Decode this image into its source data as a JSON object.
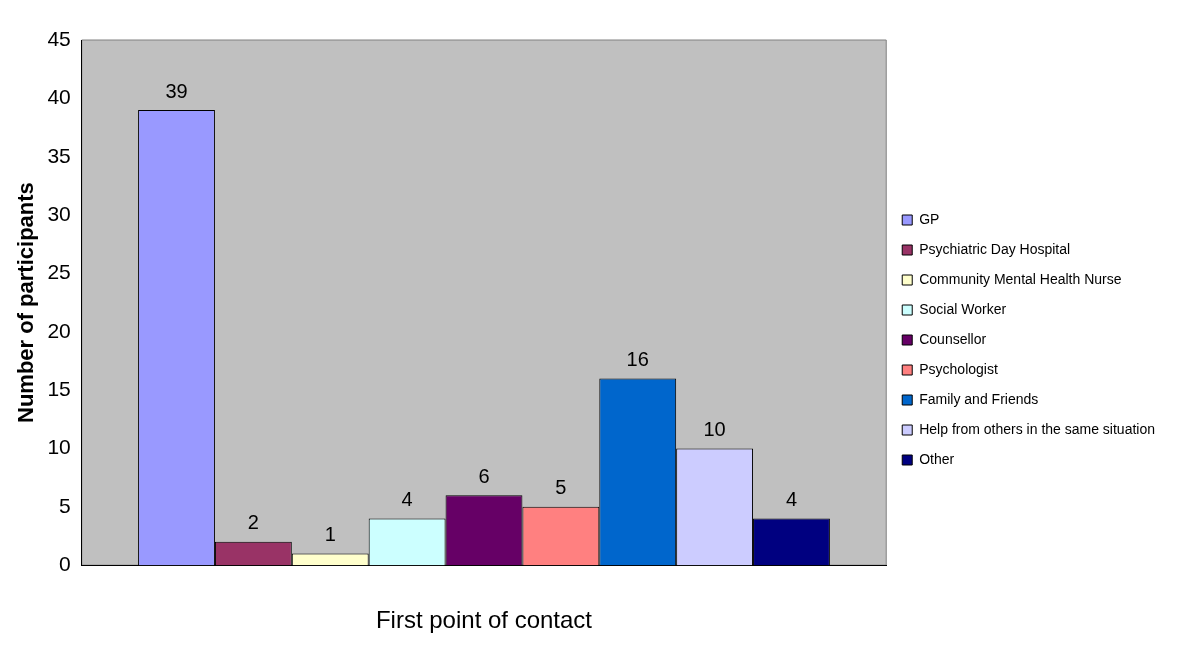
{
  "chart_data": {
    "type": "bar",
    "xlabel": "First point of contact",
    "ylabel": "Number of participants",
    "categories": [
      null
    ],
    "series": [
      {
        "name": "GP",
        "color": "#9999ff",
        "values": [
          39
        ]
      },
      {
        "name": "Psychiatric Day Hospital",
        "color": "#993366",
        "values": [
          2
        ]
      },
      {
        "name": "Community Mental Health Nurse",
        "color": "#ffffcc",
        "values": [
          1
        ]
      },
      {
        "name": "Social Worker",
        "color": "#ccffff",
        "values": [
          4
        ]
      },
      {
        "name": "Counsellor",
        "color": "#660066",
        "values": [
          6
        ]
      },
      {
        "name": "Psychologist",
        "color": "#ff8080",
        "values": [
          5
        ]
      },
      {
        "name": "Family and Friends",
        "color": "#0066cc",
        "values": [
          16
        ]
      },
      {
        "name": "Help from others in the same situation",
        "color": "#ccccff",
        "values": [
          10
        ]
      },
      {
        "name": "Other",
        "color": "#000080",
        "values": [
          4
        ]
      }
    ],
    "ylim": [
      0,
      45
    ],
    "yticks": [
      0,
      5,
      10,
      15,
      20,
      25,
      30,
      35,
      40,
      45
    ],
    "grid": false,
    "legend": "right",
    "data_labels": true
  }
}
